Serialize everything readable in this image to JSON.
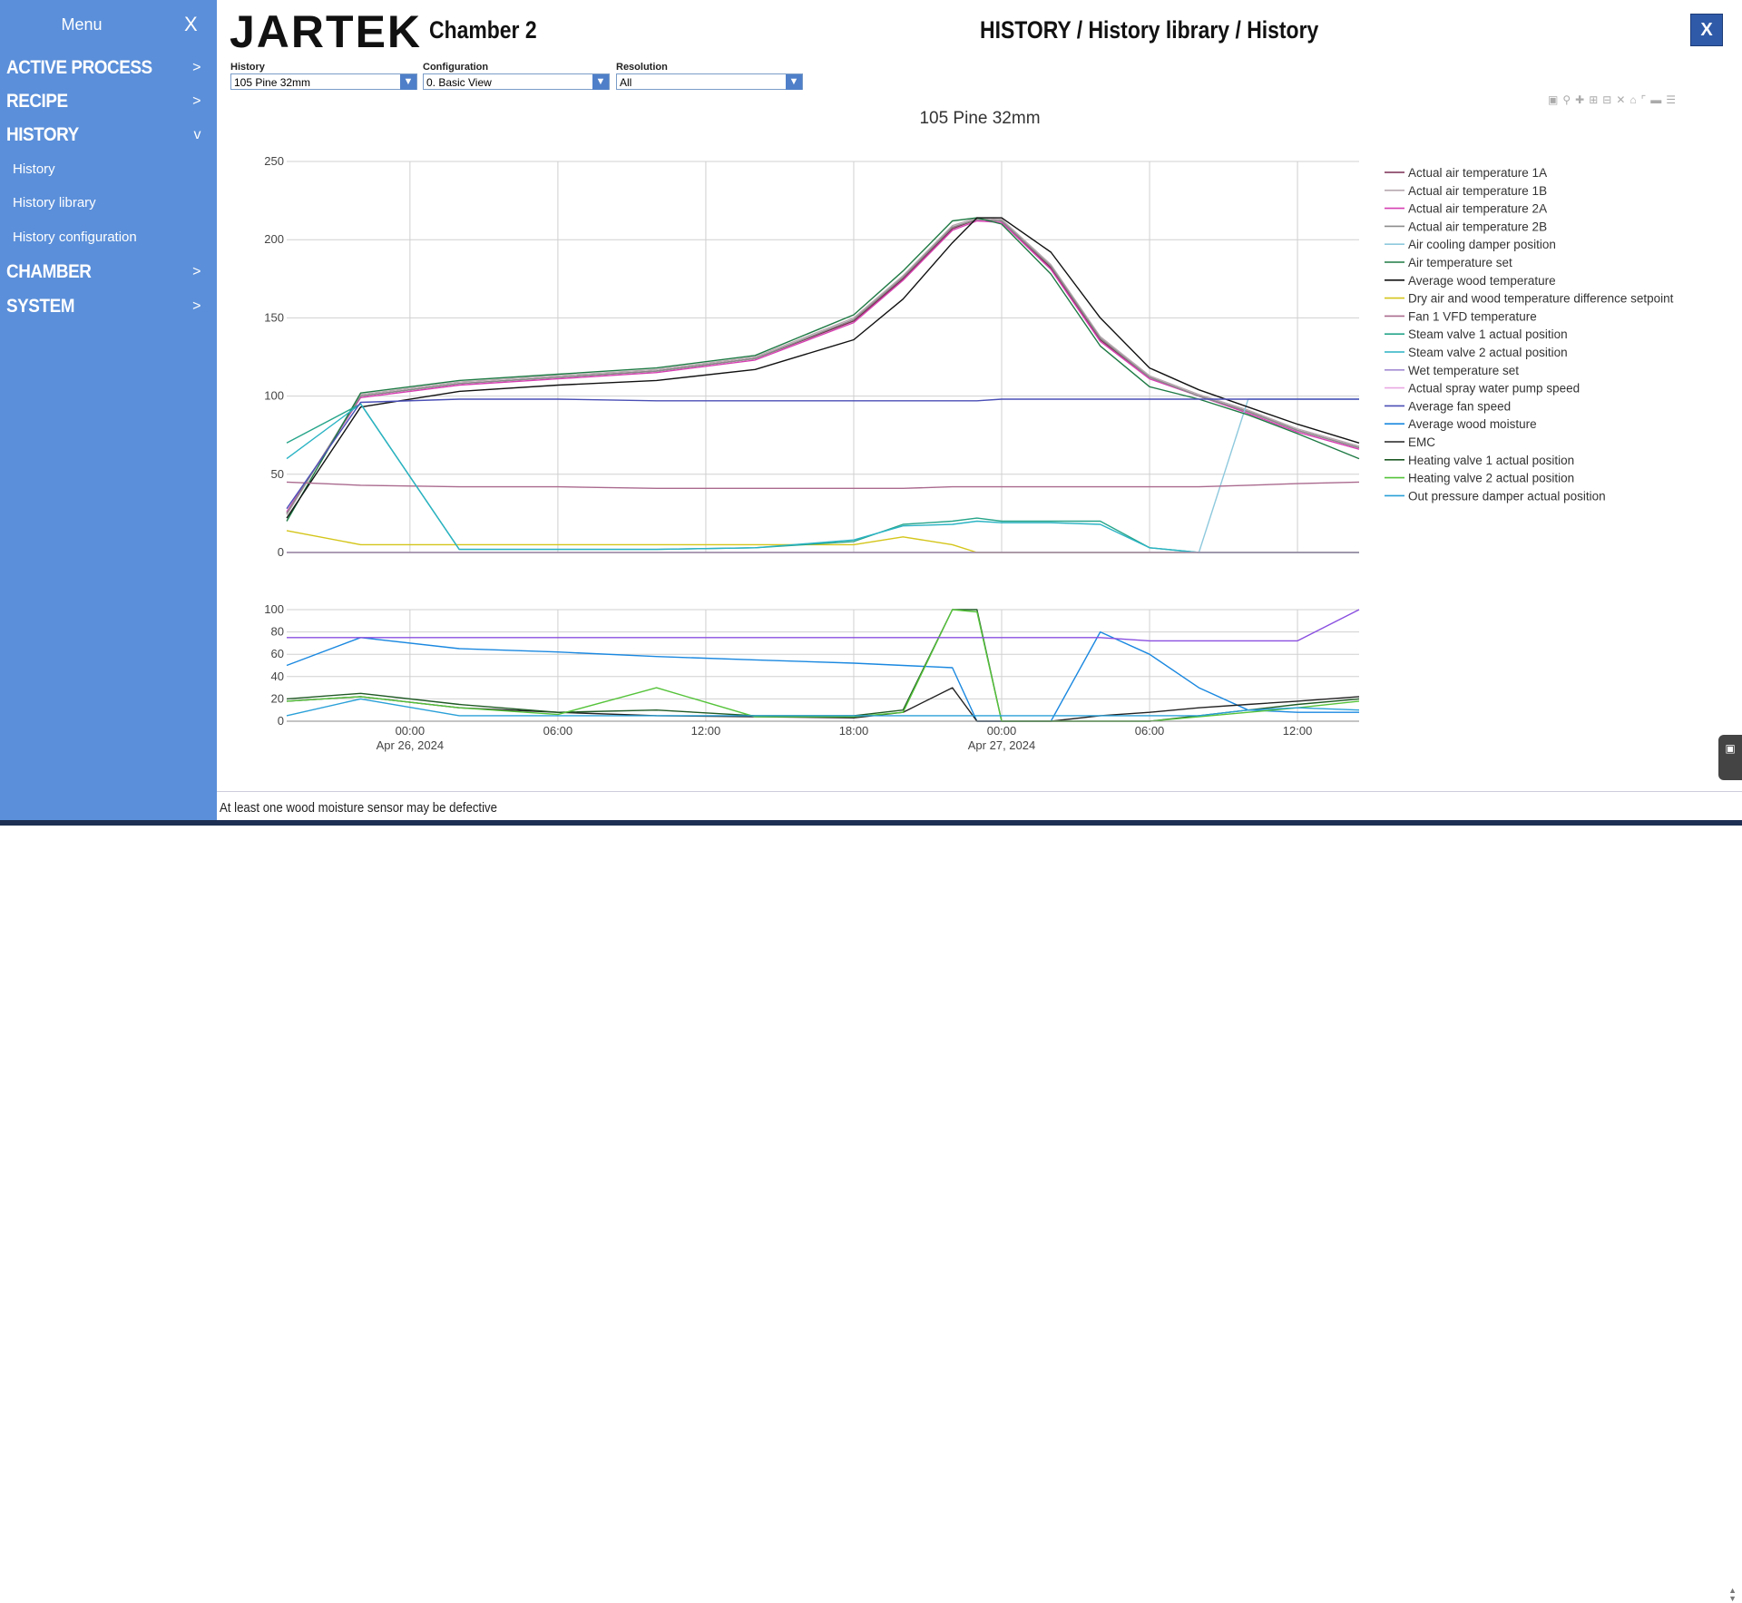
{
  "sidebar": {
    "title": "Menu",
    "close": "X",
    "items": [
      {
        "label": "ACTIVE PROCESS",
        "chevron": ">"
      },
      {
        "label": "RECIPE",
        "chevron": ">"
      },
      {
        "label": "HISTORY",
        "chevron": "v",
        "children": [
          "History",
          "History library",
          "History configuration"
        ]
      },
      {
        "label": "CHAMBER",
        "chevron": ">"
      },
      {
        "label": "SYSTEM",
        "chevron": ">"
      }
    ]
  },
  "header": {
    "logo": "JARTEK",
    "chamber": "Chamber 2",
    "breadcrumb": "HISTORY / History library / History",
    "close": "X"
  },
  "filters": [
    {
      "label": "History",
      "value": "105 Pine 32mm"
    },
    {
      "label": "Configuration",
      "value": "0. Basic View"
    },
    {
      "label": "Resolution",
      "value": "All"
    }
  ],
  "toolbar_icons": [
    "camera-icon",
    "zoom-icon",
    "pan-icon",
    "zoom-in-icon",
    "zoom-out-icon",
    "autoscale-icon",
    "reset-axes-icon",
    "spike-lines-icon",
    "hover-closest-icon",
    "hover-compare-icon"
  ],
  "status": {
    "message": "At least one wood moisture sensor may be defective"
  },
  "chart_data": {
    "type": "line",
    "title": "105 Pine 32mm",
    "x": [
      "Apr 25 19:00",
      "Apr 25 22:00",
      "Apr 26 02:00",
      "Apr 26 06:00",
      "Apr 26 10:00",
      "Apr 26 14:00",
      "Apr 26 18:00",
      "Apr 26 20:00",
      "Apr 26 22:00",
      "Apr 26 23:00",
      "Apr 27 00:00",
      "Apr 27 02:00",
      "Apr 27 04:00",
      "Apr 27 06:00",
      "Apr 27 08:00",
      "Apr 27 10:00",
      "Apr 27 12:00",
      "Apr 27 14:30"
    ],
    "x_ticks": [
      {
        "label": "00:00",
        "sub": "Apr 26, 2024"
      },
      {
        "label": "06:00"
      },
      {
        "label": "12:00"
      },
      {
        "label": "18:00"
      },
      {
        "label": "00:00",
        "sub": "Apr 27, 2024"
      },
      {
        "label": "06:00"
      },
      {
        "label": "12:00"
      }
    ],
    "panels": [
      {
        "ylim": [
          0,
          250
        ],
        "yticks": [
          0,
          50,
          100,
          150,
          200,
          250
        ],
        "grid": true,
        "series": [
          {
            "name": "Actual air temperature 1A",
            "color": "#7b2d52",
            "values": [
              25,
              100,
              108,
              112,
              116,
              124,
              148,
              175,
              207,
              213,
              212,
              182,
              136,
              112,
              100,
              90,
              78,
              67
            ]
          },
          {
            "name": "Actual air temperature 1B",
            "color": "#b7a9b0",
            "values": [
              24,
              101,
              109,
              113,
              117,
              125,
              150,
              177,
              209,
              214,
              213,
              184,
              138,
              113,
              101,
              91,
              79,
              68
            ]
          },
          {
            "name": "Actual air temperature 2A",
            "color": "#d63fb2",
            "values": [
              26,
              99,
              107,
              111,
              115,
              123,
              147,
              174,
              206,
              212,
              211,
              181,
              135,
              111,
              100,
              89,
              77,
              66
            ]
          },
          {
            "name": "Actual air temperature 2B",
            "color": "#8b8b8b",
            "values": [
              25,
              100,
              108,
              112,
              116,
              124,
              149,
              176,
              208,
              213,
              212,
              183,
              137,
              112,
              100,
              90,
              78,
              67
            ]
          },
          {
            "name": "Air cooling damper position",
            "color": "#8ec9dd",
            "values": [
              0,
              0,
              0,
              0,
              0,
              0,
              0,
              0,
              0,
              0,
              0,
              0,
              0,
              0,
              0,
              98,
              98,
              98
            ]
          },
          {
            "name": "Air temperature set",
            "color": "#1e7a44",
            "values": [
              20,
              102,
              110,
              114,
              118,
              126,
              152,
              180,
              212,
              214,
              210,
              178,
              132,
              106,
              98,
              88,
              76,
              60
            ]
          },
          {
            "name": "Average wood temperature",
            "color": "#111111",
            "values": [
              22,
              93,
              103,
              107,
              110,
              117,
              136,
              162,
              198,
              214,
              214,
              192,
              150,
              118,
              104,
              93,
              82,
              70
            ]
          },
          {
            "name": "Dry air and wood temperature difference setpoint",
            "color": "#d4c51a",
            "values": [
              14,
              5,
              5,
              5,
              5,
              5,
              5,
              10,
              5,
              0,
              0,
              0,
              0,
              0,
              0,
              0,
              0,
              0
            ]
          },
          {
            "name": "Fan 1 VFD temperature",
            "color": "#aa6a8e",
            "values": [
              45,
              43,
              42,
              42,
              41,
              41,
              41,
              41,
              42,
              42,
              42,
              42,
              42,
              42,
              42,
              43,
              44,
              45
            ]
          },
          {
            "name": "Steam valve 1 actual position",
            "color": "#27a58a",
            "values": [
              70,
              95,
              2,
              2,
              2,
              3,
              7,
              18,
              20,
              22,
              20,
              20,
              20,
              3,
              0,
              0,
              0,
              0
            ]
          },
          {
            "name": "Steam valve 2 actual position",
            "color": "#2ab3c4",
            "values": [
              60,
              95,
              2,
              2,
              2,
              3,
              8,
              17,
              18,
              20,
              19,
              19,
              18,
              3,
              0,
              0,
              0,
              0
            ]
          },
          {
            "name": "Wet temperature set",
            "color": "#a48cd4",
            "values": [
              0,
              0,
              0,
              0,
              0,
              0,
              0,
              0,
              0,
              0,
              0,
              0,
              0,
              0,
              0,
              0,
              0,
              0
            ]
          },
          {
            "name": "Actual spray water pump speed",
            "color": "#e9a9e3",
            "values": [
              0,
              0,
              0,
              0,
              0,
              0,
              0,
              0,
              0,
              0,
              0,
              0,
              0,
              0,
              0,
              0,
              0,
              0
            ]
          },
          {
            "name": "Average fan speed",
            "color": "#4a4fb5",
            "values": [
              28,
              96,
              98,
              98,
              97,
              97,
              97,
              97,
              97,
              97,
              98,
              98,
              98,
              98,
              98,
              98,
              98,
              98
            ]
          }
        ]
      },
      {
        "ylim": [
          0,
          100
        ],
        "yticks": [
          0,
          20,
          40,
          60,
          80,
          100
        ],
        "grid": true,
        "series": [
          {
            "name": "Average wood moisture",
            "color": "#1a88e0",
            "values": [
              50,
              75,
              65,
              62,
              58,
              55,
              52,
              50,
              48,
              0,
              0,
              0,
              80,
              60,
              30,
              10,
              8,
              8
            ]
          },
          {
            "name": "EMC",
            "color": "#222222",
            "values": [
              18,
              22,
              12,
              8,
              5,
              4,
              3,
              8,
              30,
              0,
              0,
              0,
              5,
              8,
              12,
              15,
              18,
              22
            ]
          },
          {
            "name": "Heating valve 1 actual position",
            "color": "#1f5a24",
            "values": [
              20,
              25,
              15,
              8,
              10,
              5,
              5,
              10,
              100,
              100,
              0,
              0,
              0,
              0,
              5,
              10,
              15,
              20
            ]
          },
          {
            "name": "Heating valve 2 actual position",
            "color": "#55c33a",
            "values": [
              18,
              22,
              12,
              6,
              30,
              4,
              4,
              8,
              100,
              98,
              0,
              0,
              0,
              0,
              4,
              8,
              12,
              18
            ]
          },
          {
            "name": "Out pressure damper actual position",
            "color": "#2aa0d8",
            "values": [
              5,
              20,
              5,
              5,
              5,
              5,
              5,
              5,
              5,
              5,
              5,
              5,
              5,
              5,
              5,
              10,
              12,
              10
            ]
          },
          {
            "name": "Average fan speed",
            "color": "#8a4fe0",
            "values": [
              75,
              75,
              75,
              75,
              75,
              75,
              75,
              75,
              75,
              75,
              75,
              75,
              75,
              72,
              72,
              72,
              72,
              100
            ]
          }
        ]
      }
    ],
    "legend": [
      "Actual air temperature 1A",
      "Actual air temperature 1B",
      "Actual air temperature 2A",
      "Actual air temperature 2B",
      "Air cooling damper position",
      "Air temperature set",
      "Average wood temperature",
      "Dry air and wood temperature difference setpoint",
      "Fan 1 VFD temperature",
      "Steam valve 1 actual position",
      "Steam valve 2 actual position",
      "Wet temperature set",
      " Actual spray water pump speed",
      "Average fan speed",
      "Average wood moisture",
      "EMC",
      "Heating valve 1 actual position",
      "Heating valve 2 actual position",
      "Out pressure damper actual position"
    ],
    "legend_colors": [
      "#7b2d52",
      "#b7a9b0",
      "#d63fb2",
      "#8b8b8b",
      "#8ec9dd",
      "#1e7a44",
      "#111111",
      "#d4c51a",
      "#aa6a8e",
      "#27a58a",
      "#2ab3c4",
      "#a48cd4",
      "#e9a9e3",
      "#4a4fb5",
      "#1a88e0",
      "#222222",
      "#1f5a24",
      "#55c33a",
      "#2aa0d8"
    ],
    "legend_placement": "right"
  }
}
